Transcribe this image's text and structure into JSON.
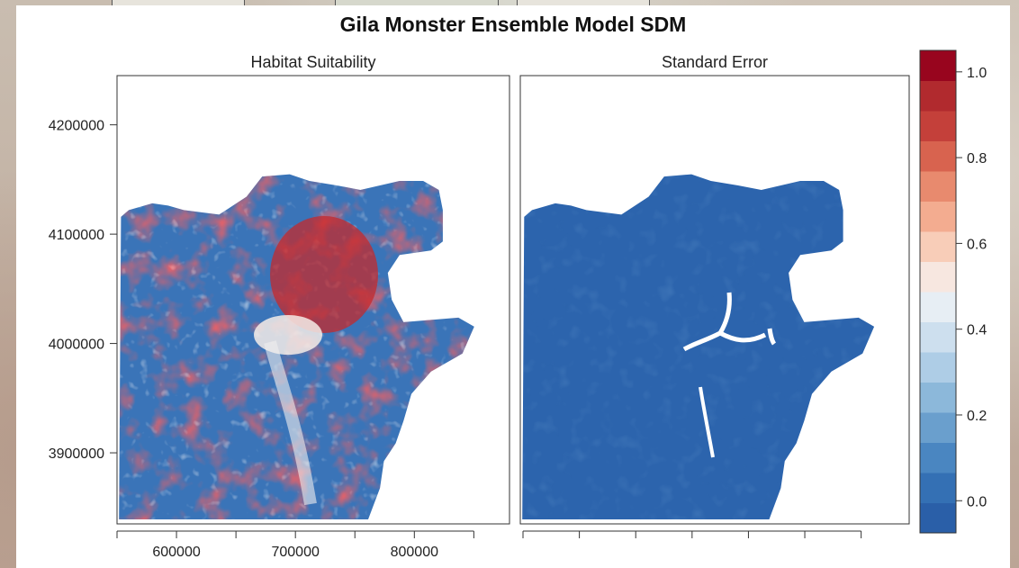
{
  "figure": {
    "title": "Gila Monster Ensemble Model SDM"
  },
  "chart_data": [
    {
      "type": "heatmap",
      "title": "Habitat Suitability",
      "x_ticks": [
        600000,
        700000,
        800000
      ],
      "y_ticks": [
        3900000,
        4000000,
        4100000,
        4200000
      ],
      "xlim": [
        550000,
        880000
      ],
      "ylim": [
        3835000,
        4245000
      ],
      "value_range": [
        0.0,
        1.0
      ]
    },
    {
      "type": "heatmap",
      "title": "Standard Error",
      "x_ticks": [],
      "value_range": [
        0.0,
        1.0
      ]
    }
  ],
  "colorbar": {
    "ticks": [
      "0.0",
      "0.2",
      "0.4",
      "0.6",
      "0.8",
      "1.0"
    ],
    "colors": [
      "#2a5fa8",
      "#3470b4",
      "#4a86c1",
      "#6a9fcd",
      "#8cb8da",
      "#aecde6",
      "#cddfee",
      "#e7eef4",
      "#f7e7e0",
      "#f8cdb8",
      "#f3ac90",
      "#e88a6e",
      "#d8634f",
      "#c4403a",
      "#b12a2e",
      "#98051e"
    ]
  }
}
